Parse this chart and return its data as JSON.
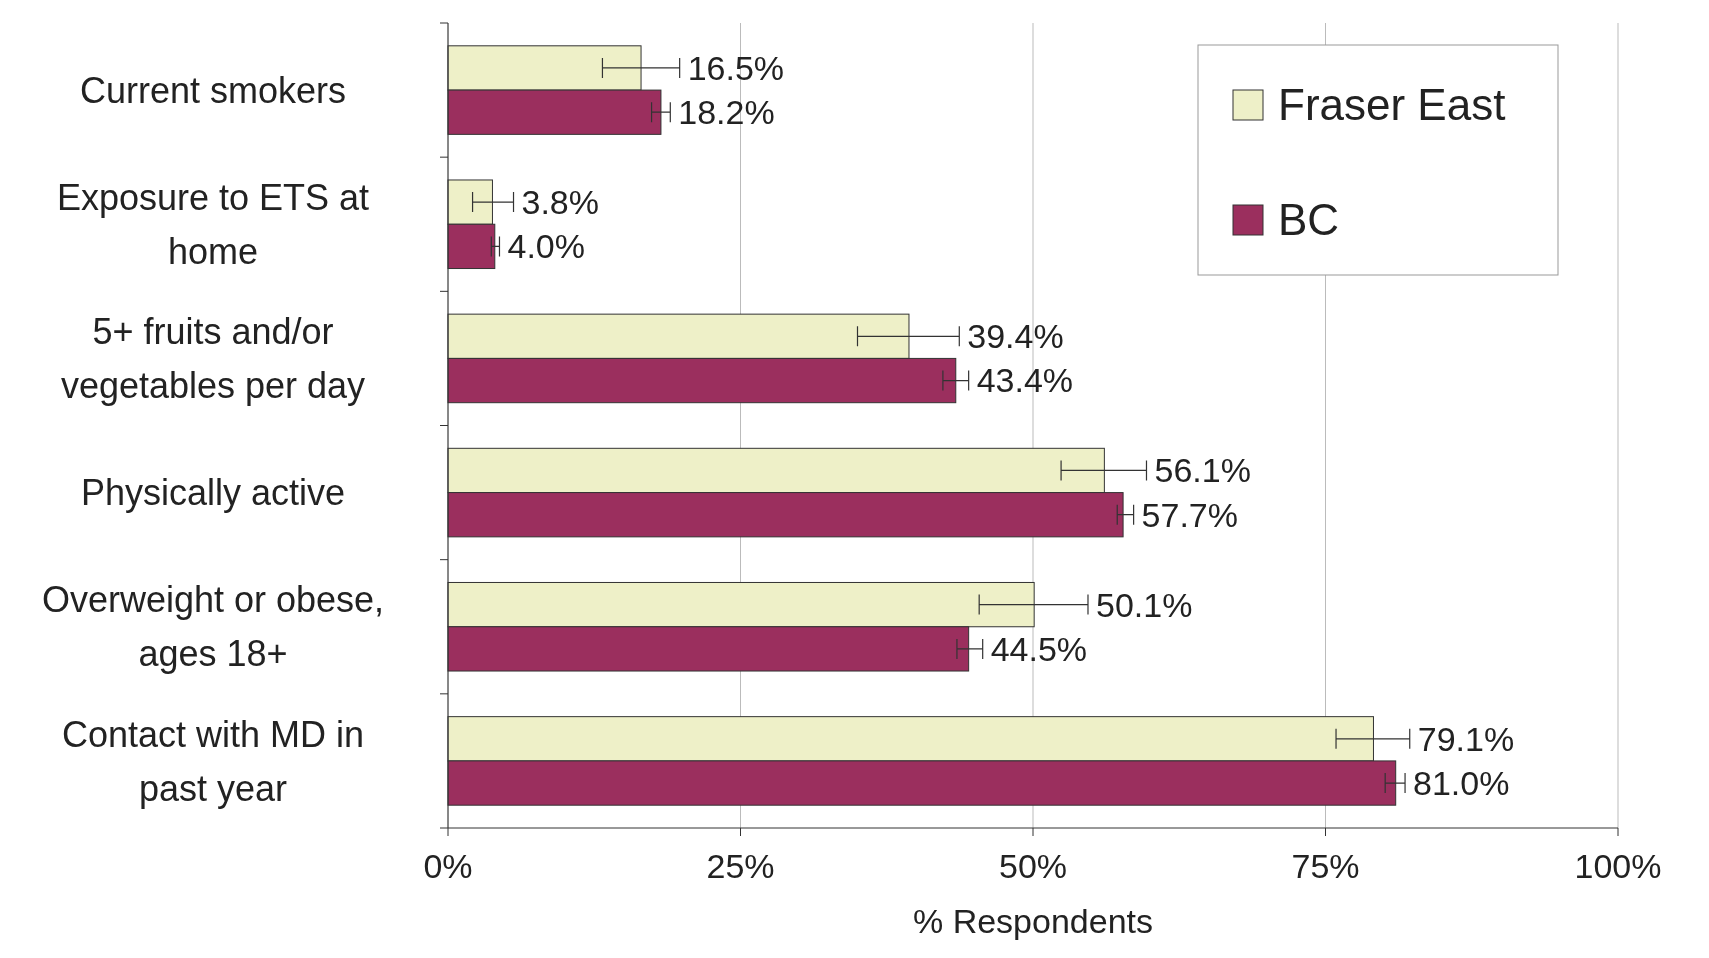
{
  "chart_data": {
    "type": "bar",
    "orientation": "horizontal",
    "xlabel": "% Respondents",
    "categories": [
      "Current smokers",
      "Exposure to ETS at home",
      "5+ fruits and/or vegetables per day",
      "Physically active",
      "Overweight or obese, ages 18+",
      "Contact with MD in past year"
    ],
    "series": [
      {
        "name": "Fraser East",
        "color": "#eef0c8",
        "values": [
          16.5,
          3.8,
          39.4,
          56.1,
          50.1,
          79.1
        ],
        "value_labels": [
          "16.5%",
          "3.8%",
          "39.4%",
          "56.1%",
          "50.1%",
          "79.1%"
        ],
        "errors": [
          [
            13.2,
            19.8
          ],
          [
            2.1,
            5.6
          ],
          [
            35.0,
            43.7
          ],
          [
            52.4,
            59.7
          ],
          [
            45.4,
            54.7
          ],
          [
            75.9,
            82.2
          ]
        ]
      },
      {
        "name": "BC",
        "color": "#9b2f5e",
        "values": [
          18.2,
          4.0,
          43.4,
          57.7,
          44.5,
          81.0
        ],
        "value_labels": [
          "18.2%",
          "4.0%",
          "43.4%",
          "57.7%",
          "44.5%",
          "81.0%"
        ],
        "errors": [
          [
            17.4,
            19.0
          ],
          [
            3.7,
            4.4
          ],
          [
            42.3,
            44.5
          ],
          [
            57.2,
            58.6
          ],
          [
            43.5,
            45.7
          ],
          [
            80.1,
            81.8
          ]
        ]
      }
    ],
    "xlim": [
      0,
      100
    ],
    "xticks": [
      {
        "value": 0,
        "label": "0%"
      },
      {
        "value": 25,
        "label": "25%"
      },
      {
        "value": 50,
        "label": "50%"
      },
      {
        "value": 75,
        "label": "75%"
      },
      {
        "value": 100,
        "label": "100%"
      }
    ],
    "grid": "x",
    "legend": "top right"
  }
}
